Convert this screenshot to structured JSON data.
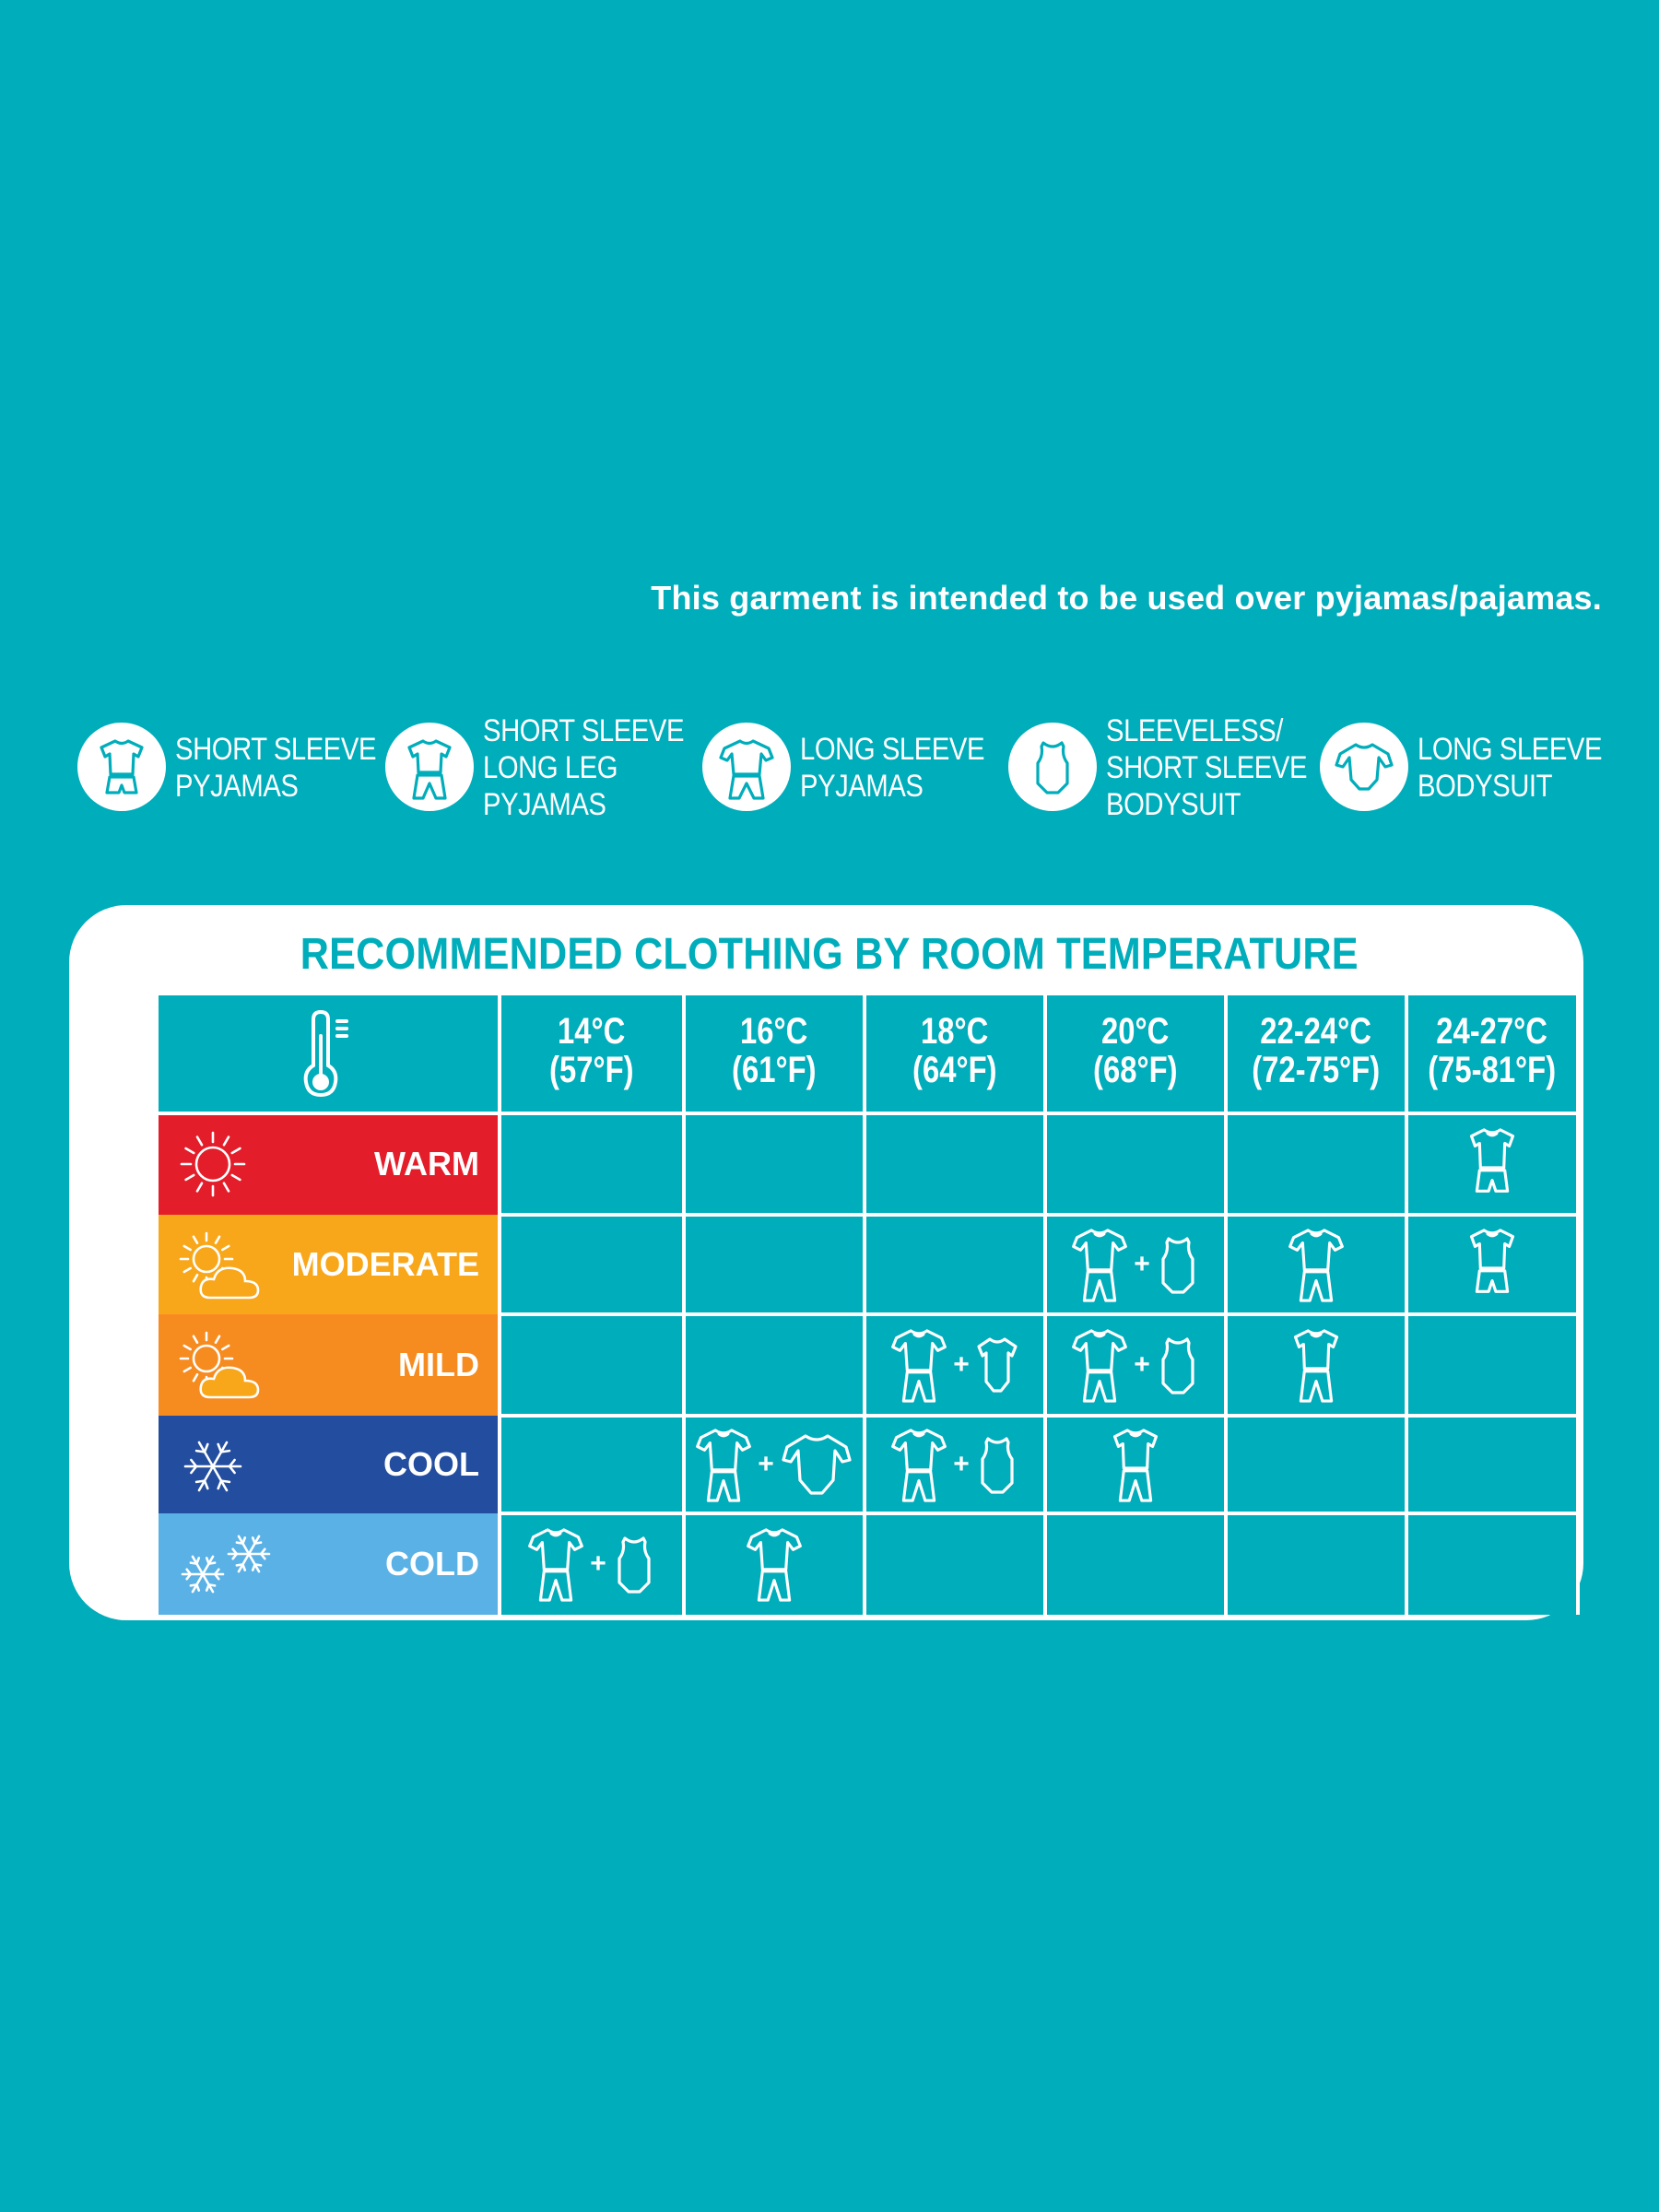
{
  "note": "This garment is intended to be used over pyjamas/pajamas.",
  "legend": [
    {
      "icon": "short-sleeve-pyjamas-icon",
      "lines": [
        "SHORT SLEEVE",
        "PYJAMAS"
      ]
    },
    {
      "icon": "short-sleeve-long-leg-pyjamas-icon",
      "lines": [
        "SHORT SLEEVE",
        "LONG LEG",
        "PYJAMAS"
      ]
    },
    {
      "icon": "long-sleeve-pyjamas-icon",
      "lines": [
        "LONG SLEEVE",
        "PYJAMAS"
      ]
    },
    {
      "icon": "sleeveless-bodysuit-icon",
      "lines": [
        "SLEEVELESS/",
        "SHORT SLEEVE",
        "BODYSUIT"
      ]
    },
    {
      "icon": "long-sleeve-bodysuit-icon",
      "lines": [
        "LONG SLEEVE",
        "BODYSUIT"
      ]
    }
  ],
  "table": {
    "title": "RECOMMENDED CLOTHING BY ROOM TEMPERATURE",
    "columns": [
      {
        "c": "14°C",
        "f": "(57°F)"
      },
      {
        "c": "16°C",
        "f": "(61°F)"
      },
      {
        "c": "18°C",
        "f": "(64°F)"
      },
      {
        "c": "20°C",
        "f": "(68°F)"
      },
      {
        "c": "22-24°C",
        "f": "(72-75°F)"
      },
      {
        "c": "24-27°C",
        "f": "(75-81°F)"
      }
    ],
    "rows": [
      {
        "label": "WARM",
        "color": "#e31e2a",
        "icon": "sun-icon",
        "cells": [
          [],
          [],
          [],
          [],
          [],
          [
            "short-sleeve-pyjamas"
          ]
        ]
      },
      {
        "label": "MODERATE",
        "color": "#f9a71a",
        "icon": "sun-cloud-icon",
        "cells": [
          [],
          [],
          [],
          [
            "long-sleeve-pyjamas",
            "sleeveless-bodysuit"
          ],
          [
            "long-sleeve-pyjamas"
          ],
          [
            "short-sleeve-pyjamas"
          ]
        ]
      },
      {
        "label": "MILD",
        "color": "#f68b1f",
        "icon": "sun-cloud-icon",
        "cells": [
          [],
          [],
          [
            "long-sleeve-pyjamas",
            "short-sleeve-bodysuit"
          ],
          [
            "long-sleeve-pyjamas",
            "sleeveless-bodysuit"
          ],
          [
            "short-sleeve-long-leg-pyjamas"
          ],
          []
        ]
      },
      {
        "label": "COOL",
        "color": "#234d9e",
        "icon": "snowflake-icon",
        "cells": [
          [],
          [
            "long-sleeve-pyjamas",
            "long-sleeve-bodysuit"
          ],
          [
            "long-sleeve-pyjamas",
            "sleeveless-bodysuit"
          ],
          [
            "short-sleeve-long-leg-pyjamas"
          ],
          [],
          []
        ]
      },
      {
        "label": "COLD",
        "color": "#5ab1e6",
        "icon": "snowflakes-icon",
        "cells": [
          [
            "long-sleeve-pyjamas",
            "sleeveless-bodysuit"
          ],
          [
            "long-sleeve-pyjamas"
          ],
          [],
          [],
          [],
          []
        ]
      }
    ]
  }
}
